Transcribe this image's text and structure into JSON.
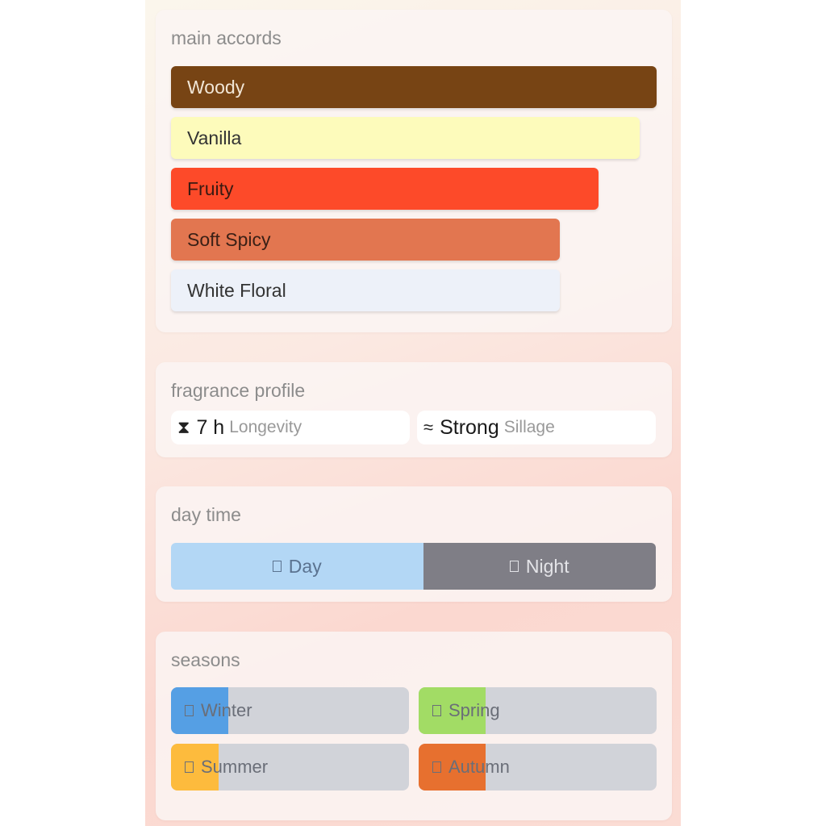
{
  "main_accords": {
    "title": "main accords",
    "items": [
      {
        "label": "Woody",
        "strength_pct": 100,
        "color": "#774414",
        "text_color": "#f1e6d6"
      },
      {
        "label": "Vanilla",
        "strength_pct": 96.5,
        "color": "#fdfbbb",
        "text_color": "#333333"
      },
      {
        "label": "Fruity",
        "strength_pct": 88,
        "color": "#fd4a29",
        "text_color": "#3a1a12"
      },
      {
        "label": "Soft Spicy",
        "strength_pct": 80,
        "color": "#e27650",
        "text_color": "#3a2016"
      },
      {
        "label": "White Floral",
        "strength_pct": 80,
        "color": "#edf1f9",
        "text_color": "#333333"
      }
    ]
  },
  "fragrance_profile": {
    "title": "fragrance profile",
    "longevity": {
      "icon": "hourglass-icon",
      "glyph": "⌛",
      "value": "7 h",
      "label": "Longevity"
    },
    "sillage": {
      "icon": "waves-icon",
      "glyph": "≈",
      "value": "Strong",
      "label": "Sillage"
    }
  },
  "day_time": {
    "title": "day time",
    "day": {
      "label": "Day",
      "pct": 52,
      "color": "#b3d7f5"
    },
    "night": {
      "label": "Night",
      "color": "#7f7e86"
    }
  },
  "seasons": {
    "title": "seasons",
    "items": [
      {
        "label": "Winter",
        "pct": 24,
        "color": "#559fe4"
      },
      {
        "label": "Spring",
        "pct": 28,
        "color": "#a2dc65"
      },
      {
        "label": "Summer",
        "pct": 20,
        "color": "#fdbb3d"
      },
      {
        "label": "Autumn",
        "pct": 28,
        "color": "#e7702f"
      }
    ]
  }
}
